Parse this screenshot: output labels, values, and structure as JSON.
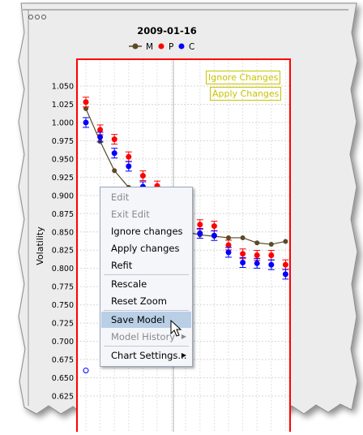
{
  "chart": {
    "title": "2009-01-16",
    "legend": [
      {
        "label": "M",
        "color": "#5a4a26"
      },
      {
        "label": "P",
        "color": "#ff0000"
      },
      {
        "label": "C",
        "color": "#0000ff"
      }
    ],
    "ylabel": "Volatility",
    "buttons": {
      "ignore_changes": "Ignore Changes",
      "apply_changes": "Apply Changes"
    },
    "accent_color": "#ff0000",
    "button_color": "#c8c400"
  },
  "context_menu": {
    "items": [
      {
        "label": "Edit",
        "enabled": false
      },
      {
        "label": "Exit Edit",
        "enabled": false
      },
      {
        "label": "Ignore changes",
        "enabled": true
      },
      {
        "label": "Apply changes",
        "enabled": true
      },
      {
        "label": "Refit",
        "enabled": true
      },
      {
        "label": "Rescale",
        "enabled": true
      },
      {
        "label": "Reset Zoom",
        "enabled": true
      },
      {
        "label": "Save Model",
        "enabled": true,
        "highlighted": true
      },
      {
        "label": "Model History",
        "enabled": false,
        "submenu": true
      },
      {
        "label": "Chart Settings...",
        "enabled": true,
        "submenu": true
      }
    ]
  },
  "chart_data": {
    "type": "scatter",
    "title": "2009-01-16",
    "ylabel": "Volatility",
    "ylim": [
      0.6,
      1.06
    ],
    "yticks": [
      "1.050",
      "1.025",
      "1.000",
      "0.975",
      "0.950",
      "0.925",
      "0.900",
      "0.875",
      "0.850",
      "0.825",
      "0.800",
      "0.775",
      "0.750",
      "0.725",
      "0.700",
      "0.675",
      "0.650",
      "0.625"
    ],
    "grid": true,
    "legend_position": "top",
    "series": [
      {
        "name": "M",
        "type": "line",
        "color": "#5a4a26",
        "values": [
          1.019,
          0.974,
          0.934,
          0.911,
          0.889,
          0.866,
          0.856,
          0.85,
          0.846,
          0.844,
          0.842,
          0.842,
          0.835,
          0.833,
          0.837
        ]
      },
      {
        "name": "P",
        "color": "#ff0000",
        "values": [
          1.028,
          0.99,
          0.977,
          0.953,
          0.927,
          0.913,
          0.9,
          0.87,
          0.86,
          0.858,
          0.832,
          0.82,
          0.818,
          0.818,
          0.805
        ]
      },
      {
        "name": "C",
        "color": "#0000ff",
        "values": [
          1.0,
          0.98,
          0.958,
          0.94,
          0.912,
          0.9,
          0.88,
          0.86,
          0.848,
          0.845,
          0.822,
          0.808,
          0.807,
          0.805,
          0.792
        ]
      }
    ],
    "outlier": {
      "value": 0.66,
      "color": "#0000ff"
    }
  }
}
